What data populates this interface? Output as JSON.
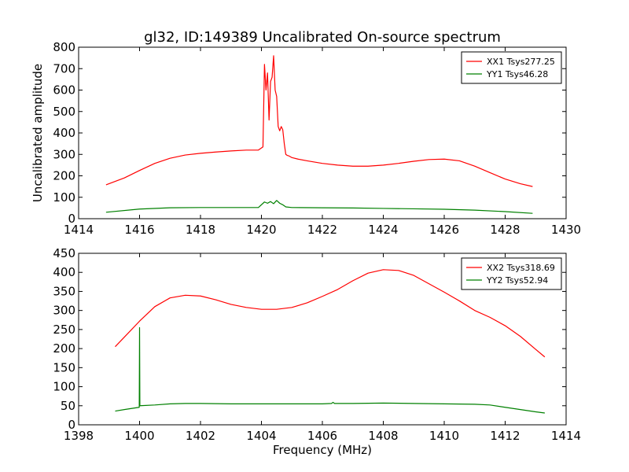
{
  "figure": {
    "title": "gl32, ID:149389 Uncalibrated On-source spectrum",
    "xlabel": "Frequency (MHz)",
    "ylabel": "Uncalibrated amplitude",
    "background": "#ffffff",
    "colors": {
      "xx": "#ff0000",
      "yy": "#008000",
      "axis": "#000000"
    }
  },
  "chart_data": [
    {
      "type": "line",
      "title": "gl32, ID:149389 Uncalibrated On-source spectrum",
      "xlabel": "",
      "ylabel": "Uncalibrated amplitude",
      "xlim": [
        1414,
        1430
      ],
      "ylim": [
        0,
        800
      ],
      "xticks": [
        "1414",
        "1416",
        "1418",
        "1420",
        "1422",
        "1424",
        "1426",
        "1428",
        "1430"
      ],
      "yticks": [
        "0",
        "100",
        "200",
        "300",
        "400",
        "500",
        "600",
        "700",
        "800"
      ],
      "legend": "top-right",
      "series": [
        {
          "name": "XX1 Tsys277.25",
          "color": "#ff0000",
          "x": [
            1414.9,
            1415.5,
            1416.0,
            1416.5,
            1417.0,
            1417.5,
            1418.0,
            1418.5,
            1419.0,
            1419.5,
            1419.9,
            1420.05,
            1420.1,
            1420.15,
            1420.2,
            1420.25,
            1420.3,
            1420.35,
            1420.4,
            1420.45,
            1420.5,
            1420.55,
            1420.6,
            1420.65,
            1420.7,
            1420.75,
            1420.8,
            1420.85,
            1420.9,
            1421.0,
            1421.2,
            1421.5,
            1422.0,
            1422.5,
            1423.0,
            1423.5,
            1424.0,
            1424.5,
            1425.0,
            1425.5,
            1426.0,
            1426.5,
            1427.0,
            1427.5,
            1428.0,
            1428.5,
            1428.9
          ],
          "y": [
            158,
            190,
            225,
            258,
            282,
            297,
            305,
            311,
            316,
            320,
            320,
            335,
            720,
            600,
            680,
            460,
            640,
            660,
            760,
            600,
            570,
            430,
            410,
            430,
            415,
            350,
            300,
            295,
            293,
            285,
            278,
            270,
            258,
            250,
            245,
            245,
            250,
            258,
            268,
            276,
            278,
            270,
            245,
            215,
            185,
            163,
            150
          ]
        },
        {
          "name": "YY1 Tsys46.28",
          "color": "#008000",
          "x": [
            1414.9,
            1416.0,
            1417.0,
            1418.0,
            1419.0,
            1419.9,
            1420.1,
            1420.2,
            1420.3,
            1420.4,
            1420.5,
            1420.6,
            1420.7,
            1420.8,
            1421.0,
            1422.0,
            1423.0,
            1424.0,
            1425.0,
            1426.0,
            1427.0,
            1428.0,
            1428.9
          ],
          "y": [
            30,
            45,
            51,
            52,
            52,
            52,
            78,
            72,
            80,
            70,
            85,
            72,
            65,
            55,
            52,
            51,
            50,
            48,
            46,
            44,
            40,
            33,
            25
          ]
        }
      ]
    },
    {
      "type": "line",
      "title": "",
      "xlabel": "Frequency (MHz)",
      "ylabel": "",
      "xlim": [
        1398,
        1414
      ],
      "ylim": [
        0,
        450
      ],
      "xticks": [
        "1398",
        "1400",
        "1402",
        "1404",
        "1406",
        "1408",
        "1410",
        "1412",
        "1414"
      ],
      "yticks": [
        "0",
        "50",
        "100",
        "150",
        "200",
        "250",
        "300",
        "350",
        "400",
        "450"
      ],
      "legend": "top-right",
      "series": [
        {
          "name": "XX2 Tsys318.69",
          "color": "#ff0000",
          "x": [
            1399.2,
            1399.5,
            1400.0,
            1400.5,
            1401.0,
            1401.5,
            1402.0,
            1402.5,
            1403.0,
            1403.5,
            1404.0,
            1404.5,
            1405.0,
            1405.5,
            1406.0,
            1406.5,
            1407.0,
            1407.5,
            1408.0,
            1408.5,
            1409.0,
            1409.5,
            1410.0,
            1410.5,
            1411.0,
            1411.5,
            1412.0,
            1412.5,
            1413.0,
            1413.3
          ],
          "y": [
            205,
            230,
            272,
            310,
            333,
            340,
            338,
            328,
            316,
            308,
            303,
            303,
            308,
            320,
            337,
            355,
            378,
            398,
            407,
            405,
            392,
            370,
            348,
            325,
            300,
            282,
            260,
            232,
            198,
            178
          ]
        },
        {
          "name": "YY2 Tsys52.94",
          "color": "#008000",
          "x": [
            1399.2,
            1399.5,
            1399.99,
            1400.0,
            1400.01,
            1400.5,
            1401.0,
            1401.5,
            1402.0,
            1403.0,
            1404.0,
            1405.0,
            1406.0,
            1406.3,
            1406.35,
            1406.4,
            1407.0,
            1408.0,
            1409.0,
            1410.0,
            1411.0,
            1411.5,
            1412.0,
            1412.5,
            1413.0,
            1413.3
          ],
          "y": [
            36,
            40,
            46,
            255,
            50,
            52,
            55,
            56,
            56,
            55,
            55,
            55,
            55,
            56,
            59,
            56,
            56,
            57,
            56,
            55,
            54,
            52,
            46,
            40,
            34,
            31
          ]
        }
      ]
    }
  ]
}
